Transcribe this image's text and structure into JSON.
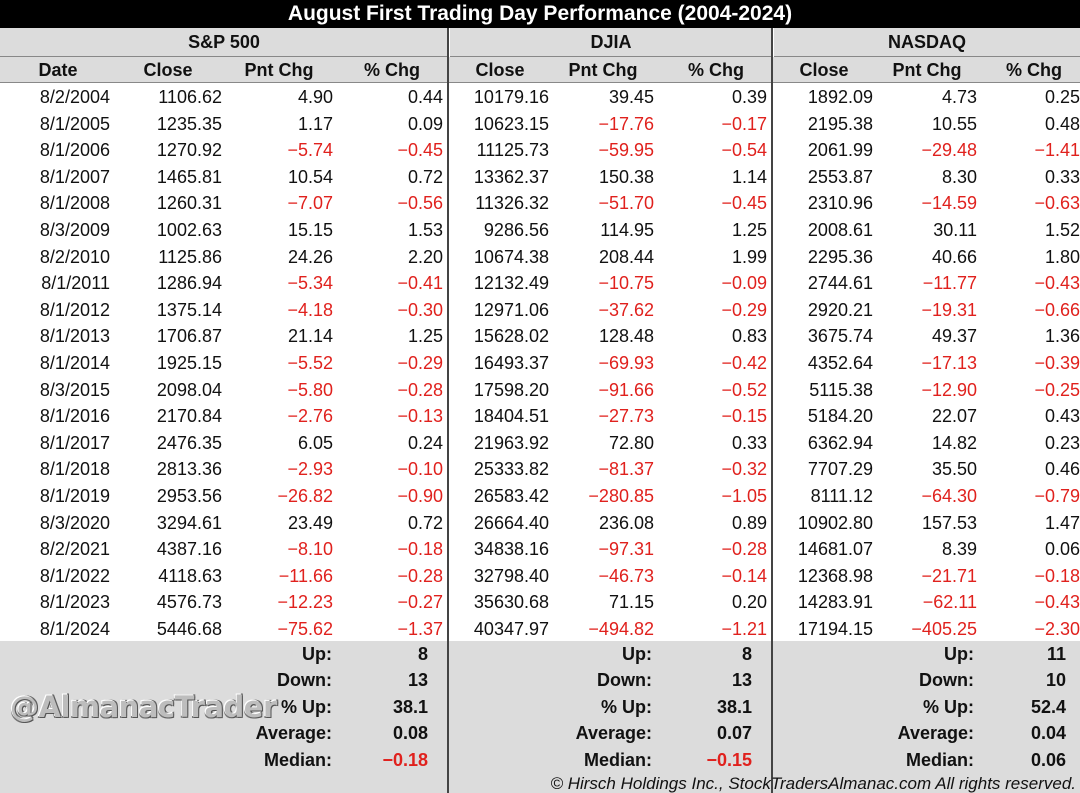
{
  "title": "August First Trading Day Performance (2004-2024)",
  "groups": {
    "sp500": "S&P 500",
    "djia": "DJIA",
    "nasdaq": "NASDAQ"
  },
  "columns": {
    "date": "Date",
    "close": "Close",
    "pnt_chg": "Pnt Chg",
    "pct_chg": "% Chg"
  },
  "rows": [
    {
      "date": "8/2/2004",
      "sp": [
        "1106.62",
        "4.90",
        "0.44"
      ],
      "dj": [
        "10179.16",
        "39.45",
        "0.39"
      ],
      "nq": [
        "1892.09",
        "4.73",
        "0.25"
      ]
    },
    {
      "date": "8/1/2005",
      "sp": [
        "1235.35",
        "1.17",
        "0.09"
      ],
      "dj": [
        "10623.15",
        "−17.76",
        "−0.17"
      ],
      "nq": [
        "2195.38",
        "10.55",
        "0.48"
      ]
    },
    {
      "date": "8/1/2006",
      "sp": [
        "1270.92",
        "−5.74",
        "−0.45"
      ],
      "dj": [
        "11125.73",
        "−59.95",
        "−0.54"
      ],
      "nq": [
        "2061.99",
        "−29.48",
        "−1.41"
      ]
    },
    {
      "date": "8/1/2007",
      "sp": [
        "1465.81",
        "10.54",
        "0.72"
      ],
      "dj": [
        "13362.37",
        "150.38",
        "1.14"
      ],
      "nq": [
        "2553.87",
        "8.30",
        "0.33"
      ]
    },
    {
      "date": "8/1/2008",
      "sp": [
        "1260.31",
        "−7.07",
        "−0.56"
      ],
      "dj": [
        "11326.32",
        "−51.70",
        "−0.45"
      ],
      "nq": [
        "2310.96",
        "−14.59",
        "−0.63"
      ]
    },
    {
      "date": "8/3/2009",
      "sp": [
        "1002.63",
        "15.15",
        "1.53"
      ],
      "dj": [
        "9286.56",
        "114.95",
        "1.25"
      ],
      "nq": [
        "2008.61",
        "30.11",
        "1.52"
      ]
    },
    {
      "date": "8/2/2010",
      "sp": [
        "1125.86",
        "24.26",
        "2.20"
      ],
      "dj": [
        "10674.38",
        "208.44",
        "1.99"
      ],
      "nq": [
        "2295.36",
        "40.66",
        "1.80"
      ]
    },
    {
      "date": "8/1/2011",
      "sp": [
        "1286.94",
        "−5.34",
        "−0.41"
      ],
      "dj": [
        "12132.49",
        "−10.75",
        "−0.09"
      ],
      "nq": [
        "2744.61",
        "−11.77",
        "−0.43"
      ]
    },
    {
      "date": "8/1/2012",
      "sp": [
        "1375.14",
        "−4.18",
        "−0.30"
      ],
      "dj": [
        "12971.06",
        "−37.62",
        "−0.29"
      ],
      "nq": [
        "2920.21",
        "−19.31",
        "−0.66"
      ]
    },
    {
      "date": "8/1/2013",
      "sp": [
        "1706.87",
        "21.14",
        "1.25"
      ],
      "dj": [
        "15628.02",
        "128.48",
        "0.83"
      ],
      "nq": [
        "3675.74",
        "49.37",
        "1.36"
      ]
    },
    {
      "date": "8/1/2014",
      "sp": [
        "1925.15",
        "−5.52",
        "−0.29"
      ],
      "dj": [
        "16493.37",
        "−69.93",
        "−0.42"
      ],
      "nq": [
        "4352.64",
        "−17.13",
        "−0.39"
      ]
    },
    {
      "date": "8/3/2015",
      "sp": [
        "2098.04",
        "−5.80",
        "−0.28"
      ],
      "dj": [
        "17598.20",
        "−91.66",
        "−0.52"
      ],
      "nq": [
        "5115.38",
        "−12.90",
        "−0.25"
      ]
    },
    {
      "date": "8/1/2016",
      "sp": [
        "2170.84",
        "−2.76",
        "−0.13"
      ],
      "dj": [
        "18404.51",
        "−27.73",
        "−0.15"
      ],
      "nq": [
        "5184.20",
        "22.07",
        "0.43"
      ]
    },
    {
      "date": "8/1/2017",
      "sp": [
        "2476.35",
        "6.05",
        "0.24"
      ],
      "dj": [
        "21963.92",
        "72.80",
        "0.33"
      ],
      "nq": [
        "6362.94",
        "14.82",
        "0.23"
      ]
    },
    {
      "date": "8/1/2018",
      "sp": [
        "2813.36",
        "−2.93",
        "−0.10"
      ],
      "dj": [
        "25333.82",
        "−81.37",
        "−0.32"
      ],
      "nq": [
        "7707.29",
        "35.50",
        "0.46"
      ]
    },
    {
      "date": "8/1/2019",
      "sp": [
        "2953.56",
        "−26.82",
        "−0.90"
      ],
      "dj": [
        "26583.42",
        "−280.85",
        "−1.05"
      ],
      "nq": [
        "8111.12",
        "−64.30",
        "−0.79"
      ]
    },
    {
      "date": "8/3/2020",
      "sp": [
        "3294.61",
        "23.49",
        "0.72"
      ],
      "dj": [
        "26664.40",
        "236.08",
        "0.89"
      ],
      "nq": [
        "10902.80",
        "157.53",
        "1.47"
      ]
    },
    {
      "date": "8/2/2021",
      "sp": [
        "4387.16",
        "−8.10",
        "−0.18"
      ],
      "dj": [
        "34838.16",
        "−97.31",
        "−0.28"
      ],
      "nq": [
        "14681.07",
        "8.39",
        "0.06"
      ]
    },
    {
      "date": "8/1/2022",
      "sp": [
        "4118.63",
        "−11.66",
        "−0.28"
      ],
      "dj": [
        "32798.40",
        "−46.73",
        "−0.14"
      ],
      "nq": [
        "12368.98",
        "−21.71",
        "−0.18"
      ]
    },
    {
      "date": "8/1/2023",
      "sp": [
        "4576.73",
        "−12.23",
        "−0.27"
      ],
      "dj": [
        "35630.68",
        "71.15",
        "0.20"
      ],
      "nq": [
        "14283.91",
        "−62.11",
        "−0.43"
      ]
    },
    {
      "date": "8/1/2024",
      "sp": [
        "5446.68",
        "−75.62",
        "−1.37"
      ],
      "dj": [
        "40347.97",
        "−494.82",
        "−1.21"
      ],
      "nq": [
        "17194.15",
        "−405.25",
        "−2.30"
      ]
    }
  ],
  "summary": [
    {
      "label": "Up:",
      "sp": "8",
      "dj": "8",
      "nq": "11"
    },
    {
      "label": "Down:",
      "sp": "13",
      "dj": "13",
      "nq": "10"
    },
    {
      "label": "% Up:",
      "sp": "38.1",
      "dj": "38.1",
      "nq": "52.4"
    },
    {
      "label": "Average:",
      "sp": "0.08",
      "dj": "0.07",
      "nq": "0.04"
    },
    {
      "label": "Median:",
      "sp": "−0.18",
      "dj": "−0.15",
      "nq": "0.06"
    }
  ],
  "watermark": "@AlmanacTrader",
  "footer": "© Hirsch Holdings Inc., StockTradersAlmanac.com All rights reserved.",
  "colors": {
    "negative": "#e0211d",
    "header_bg": "#dcdcdc",
    "title_bg": "#000000"
  }
}
